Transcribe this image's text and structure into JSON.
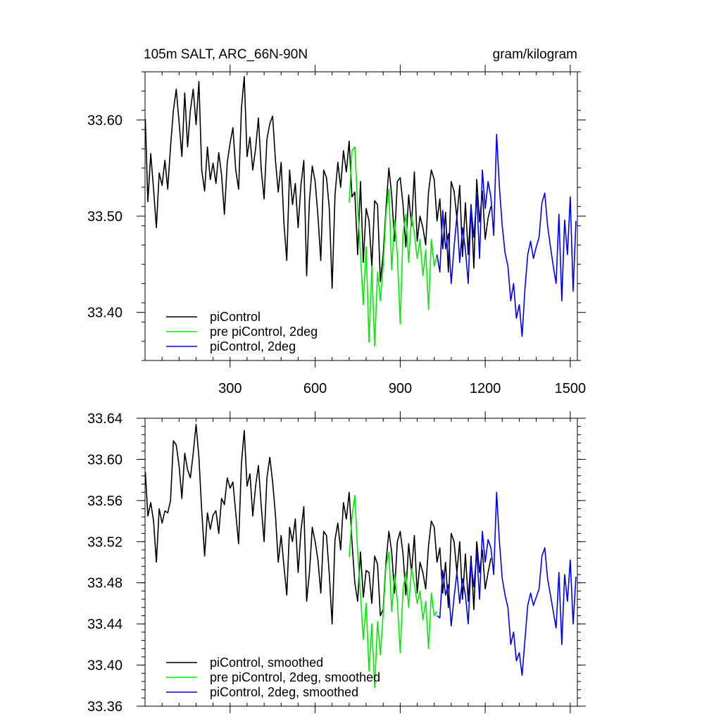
{
  "chart_data": [
    {
      "type": "line",
      "title_left": "105m SALT, ARC_66N-90N",
      "title_right": "gram/kilogram",
      "xlabel": "",
      "ylabel": "",
      "xlim": [
        0,
        1525
      ],
      "ylim": [
        33.35,
        33.65
      ],
      "xticks": [
        300,
        600,
        900,
        1200,
        1500
      ],
      "xtick_labels": [
        "300",
        "600",
        "900",
        "1200",
        "1500"
      ],
      "yticks": [
        33.4,
        33.5,
        33.6
      ],
      "ytick_labels": [
        "33.40",
        "33.50",
        "33.60"
      ],
      "grid": false,
      "legend_position": "bottom-left",
      "series": [
        {
          "name": "piControl",
          "color": "#000000",
          "x": [
            1,
            10,
            20,
            30,
            40,
            50,
            60,
            70,
            80,
            90,
            100,
            110,
            120,
            130,
            140,
            150,
            160,
            170,
            180,
            190,
            200,
            210,
            220,
            230,
            240,
            250,
            260,
            270,
            280,
            290,
            300,
            310,
            320,
            330,
            340,
            350,
            360,
            370,
            380,
            390,
            400,
            410,
            420,
            430,
            440,
            450,
            460,
            470,
            480,
            490,
            500,
            510,
            520,
            530,
            540,
            550,
            560,
            570,
            580,
            590,
            600,
            610,
            620,
            630,
            640,
            650,
            660,
            670,
            680,
            690,
            700,
            710,
            720,
            730,
            740,
            750,
            760,
            770,
            780,
            790,
            800,
            810,
            820,
            830,
            840,
            850,
            860,
            870,
            880,
            890,
            900,
            910,
            920,
            930,
            940,
            950,
            960,
            970,
            980,
            990,
            1000,
            1010,
            1020,
            1030,
            1040,
            1050,
            1060,
            1070,
            1080,
            1090,
            1100,
            1110,
            1120,
            1130,
            1140,
            1150,
            1160,
            1170,
            1180,
            1190,
            1200,
            1210,
            1220
          ],
          "values": [
            33.601,
            33.515,
            33.565,
            33.528,
            33.488,
            33.545,
            33.532,
            33.558,
            33.528,
            33.572,
            33.61,
            33.632,
            33.598,
            33.562,
            33.628,
            33.572,
            33.61,
            33.632,
            33.595,
            33.64,
            33.548,
            33.526,
            33.572,
            33.538,
            33.555,
            33.534,
            33.566,
            33.543,
            33.502,
            33.556,
            33.576,
            33.592,
            33.548,
            33.528,
            33.612,
            33.645,
            33.562,
            33.582,
            33.548,
            33.57,
            33.602,
            33.548,
            33.518,
            33.58,
            33.596,
            33.604,
            33.558,
            33.525,
            33.556,
            33.492,
            33.454,
            33.548,
            33.512,
            33.534,
            33.488,
            33.532,
            33.558,
            33.438,
            33.516,
            33.552,
            33.536,
            33.5,
            33.454,
            33.548,
            33.54,
            33.508,
            33.425,
            33.522,
            33.556,
            33.53,
            33.568,
            33.546,
            33.578,
            33.52,
            33.525,
            33.46,
            33.536,
            33.452,
            33.508,
            33.495,
            33.448,
            33.516,
            33.512,
            33.432,
            33.46,
            33.508,
            33.55,
            33.522,
            33.474,
            33.536,
            33.54,
            33.512,
            33.468,
            33.522,
            33.49,
            33.546,
            33.474,
            33.5,
            33.488,
            33.47,
            33.525,
            33.548,
            33.538,
            33.495,
            33.518,
            33.466,
            33.504,
            33.442,
            33.536,
            33.526,
            33.498,
            33.532,
            33.458,
            33.514,
            33.46,
            33.512,
            33.446,
            33.538,
            33.494,
            33.526,
            33.476,
            33.498,
            33.51
          ]
        },
        {
          "name": "pre piControl, 2deg",
          "color": "#00ee00",
          "x": [
            720,
            730,
            740,
            750,
            760,
            770,
            780,
            790,
            800,
            810,
            820,
            830,
            840,
            850,
            860,
            870,
            880,
            890,
            900,
            910,
            920,
            930,
            940,
            950,
            960,
            970,
            980,
            990,
            1000,
            1010,
            1020,
            1030
          ],
          "values": [
            33.514,
            33.568,
            33.572,
            33.51,
            33.46,
            33.408,
            33.468,
            33.369,
            33.448,
            33.365,
            33.442,
            33.412,
            33.448,
            33.503,
            33.528,
            33.444,
            33.496,
            33.46,
            33.388,
            33.482,
            33.502,
            33.452,
            33.5,
            33.482,
            33.456,
            33.476,
            33.438,
            33.465,
            33.403,
            33.476,
            33.448,
            33.46
          ]
        },
        {
          "name": "piControl, 2deg",
          "color": "#0000ee",
          "x": [
            1030,
            1040,
            1050,
            1060,
            1070,
            1080,
            1090,
            1100,
            1110,
            1120,
            1130,
            1140,
            1150,
            1160,
            1170,
            1180,
            1190,
            1200,
            1210,
            1220,
            1230,
            1240,
            1250,
            1260,
            1270,
            1280,
            1290,
            1300,
            1310,
            1320,
            1330,
            1340,
            1350,
            1360,
            1370,
            1380,
            1390,
            1400,
            1410,
            1420,
            1430,
            1440,
            1450,
            1460,
            1470,
            1480,
            1490,
            1500,
            1510,
            1520
          ],
          "values": [
            33.46,
            33.442,
            33.506,
            33.466,
            33.482,
            33.43,
            33.468,
            33.5,
            33.452,
            33.488,
            33.465,
            33.43,
            33.51,
            33.478,
            33.522,
            33.456,
            33.548,
            33.508,
            33.536,
            33.52,
            33.48,
            33.585,
            33.53,
            33.49,
            33.462,
            33.448,
            33.412,
            33.43,
            33.394,
            33.408,
            33.375,
            33.424,
            33.46,
            33.474,
            33.456,
            33.468,
            33.478,
            33.514,
            33.524,
            33.49,
            33.468,
            33.448,
            33.43,
            33.502,
            33.412,
            33.496,
            33.46,
            33.52,
            33.422,
            33.495
          ]
        }
      ]
    },
    {
      "type": "line",
      "title_left": "",
      "title_right": "",
      "xlabel": "",
      "ylabel": "",
      "xlim": [
        0,
        1525
      ],
      "ylim": [
        33.36,
        33.64
      ],
      "xticks": [
        300,
        600,
        900,
        1200,
        1500
      ],
      "xtick_labels": [],
      "yticks": [
        33.36,
        33.4,
        33.44,
        33.48,
        33.52,
        33.56,
        33.6,
        33.64
      ],
      "ytick_labels": [
        "33.36",
        "33.40",
        "33.44",
        "33.48",
        "33.52",
        "33.56",
        "33.60",
        "33.64"
      ],
      "grid": false,
      "legend_position": "bottom-left",
      "series": [
        {
          "name": "piControl, smoothed",
          "color": "#000000",
          "x": [
            1,
            10,
            20,
            30,
            40,
            50,
            60,
            70,
            80,
            90,
            100,
            110,
            120,
            130,
            140,
            150,
            160,
            170,
            180,
            190,
            200,
            210,
            220,
            230,
            240,
            250,
            260,
            270,
            280,
            290,
            300,
            310,
            320,
            330,
            340,
            350,
            360,
            370,
            380,
            390,
            400,
            410,
            420,
            430,
            440,
            450,
            460,
            470,
            480,
            490,
            500,
            510,
            520,
            530,
            540,
            550,
            560,
            570,
            580,
            590,
            600,
            610,
            620,
            630,
            640,
            650,
            660,
            670,
            680,
            690,
            700,
            710,
            720,
            730,
            740,
            750,
            760,
            770,
            780,
            790,
            800,
            810,
            820,
            830,
            840,
            850,
            860,
            870,
            880,
            890,
            900,
            910,
            920,
            930,
            940,
            950,
            960,
            970,
            980,
            990,
            1000,
            1010,
            1020,
            1030,
            1040,
            1050,
            1060,
            1070,
            1080,
            1090,
            1100,
            1110,
            1120,
            1130,
            1140,
            1150,
            1160,
            1170,
            1180,
            1190,
            1200,
            1210,
            1220
          ],
          "values": [
            33.588,
            33.545,
            33.558,
            33.54,
            33.5,
            33.552,
            33.538,
            33.55,
            33.548,
            33.56,
            33.618,
            33.614,
            33.594,
            33.562,
            33.606,
            33.59,
            33.582,
            33.606,
            33.634,
            33.602,
            33.55,
            33.506,
            33.548,
            33.532,
            33.546,
            33.55,
            33.528,
            33.562,
            33.556,
            33.582,
            33.572,
            33.578,
            33.548,
            33.518,
            33.596,
            33.628,
            33.574,
            33.586,
            33.545,
            33.574,
            33.594,
            33.554,
            33.52,
            33.582,
            33.602,
            33.578,
            33.546,
            33.5,
            33.526,
            33.496,
            33.468,
            33.534,
            33.52,
            33.542,
            33.49,
            33.53,
            33.554,
            33.462,
            33.49,
            33.534,
            33.52,
            33.502,
            33.47,
            33.53,
            33.526,
            33.488,
            33.44,
            33.522,
            33.538,
            33.512,
            33.558,
            33.542,
            33.568,
            33.52,
            33.48,
            33.462,
            33.51,
            33.466,
            33.492,
            33.49,
            33.46,
            33.506,
            33.498,
            33.448,
            33.454,
            33.5,
            33.53,
            33.51,
            33.47,
            33.52,
            33.53,
            33.508,
            33.468,
            33.518,
            33.49,
            33.526,
            33.47,
            33.5,
            33.49,
            33.474,
            33.516,
            33.54,
            33.534,
            33.5,
            33.514,
            33.47,
            33.5,
            33.456,
            33.528,
            33.52,
            33.49,
            33.52,
            33.464,
            33.508,
            33.462,
            33.506,
            33.454,
            33.52,
            33.49,
            33.512,
            33.474,
            33.49,
            33.504
          ]
        },
        {
          "name": "pre piControl, 2deg, smoothed",
          "color": "#00ee00",
          "x": [
            720,
            730,
            740,
            750,
            760,
            770,
            780,
            790,
            800,
            810,
            820,
            830,
            840,
            850,
            860,
            870,
            880,
            890,
            900,
            910,
            920,
            930,
            940,
            950,
            960,
            970,
            980,
            990,
            1000,
            1010,
            1020,
            1030
          ],
          "values": [
            33.505,
            33.544,
            33.565,
            33.51,
            33.468,
            33.425,
            33.46,
            33.394,
            33.44,
            33.378,
            33.442,
            33.41,
            33.45,
            33.496,
            33.51,
            33.452,
            33.488,
            33.462,
            33.412,
            33.474,
            33.49,
            33.456,
            33.494,
            33.478,
            33.46,
            33.472,
            33.444,
            33.462,
            33.416,
            33.47,
            33.448,
            33.452
          ]
        },
        {
          "name": "piControl, 2deg, smoothed",
          "color": "#0000ee",
          "x": [
            1030,
            1040,
            1050,
            1060,
            1070,
            1080,
            1090,
            1100,
            1110,
            1120,
            1130,
            1140,
            1150,
            1160,
            1170,
            1180,
            1190,
            1200,
            1210,
            1220,
            1230,
            1240,
            1250,
            1260,
            1270,
            1280,
            1290,
            1300,
            1310,
            1320,
            1330,
            1340,
            1350,
            1360,
            1370,
            1380,
            1390,
            1400,
            1410,
            1420,
            1430,
            1440,
            1450,
            1460,
            1470,
            1480,
            1490,
            1500,
            1510,
            1520
          ],
          "values": [
            33.448,
            33.446,
            33.492,
            33.468,
            33.478,
            33.438,
            33.466,
            33.49,
            33.46,
            33.484,
            33.468,
            33.44,
            33.5,
            33.476,
            33.51,
            33.464,
            33.53,
            33.5,
            33.522,
            33.514,
            33.488,
            33.568,
            33.52,
            33.484,
            33.468,
            33.456,
            33.42,
            33.432,
            33.404,
            33.412,
            33.39,
            33.424,
            33.458,
            33.47,
            33.458,
            33.466,
            33.474,
            33.506,
            33.514,
            33.484,
            33.468,
            33.452,
            33.436,
            33.49,
            33.42,
            33.488,
            33.462,
            33.502,
            33.44,
            33.486
          ]
        }
      ]
    }
  ]
}
